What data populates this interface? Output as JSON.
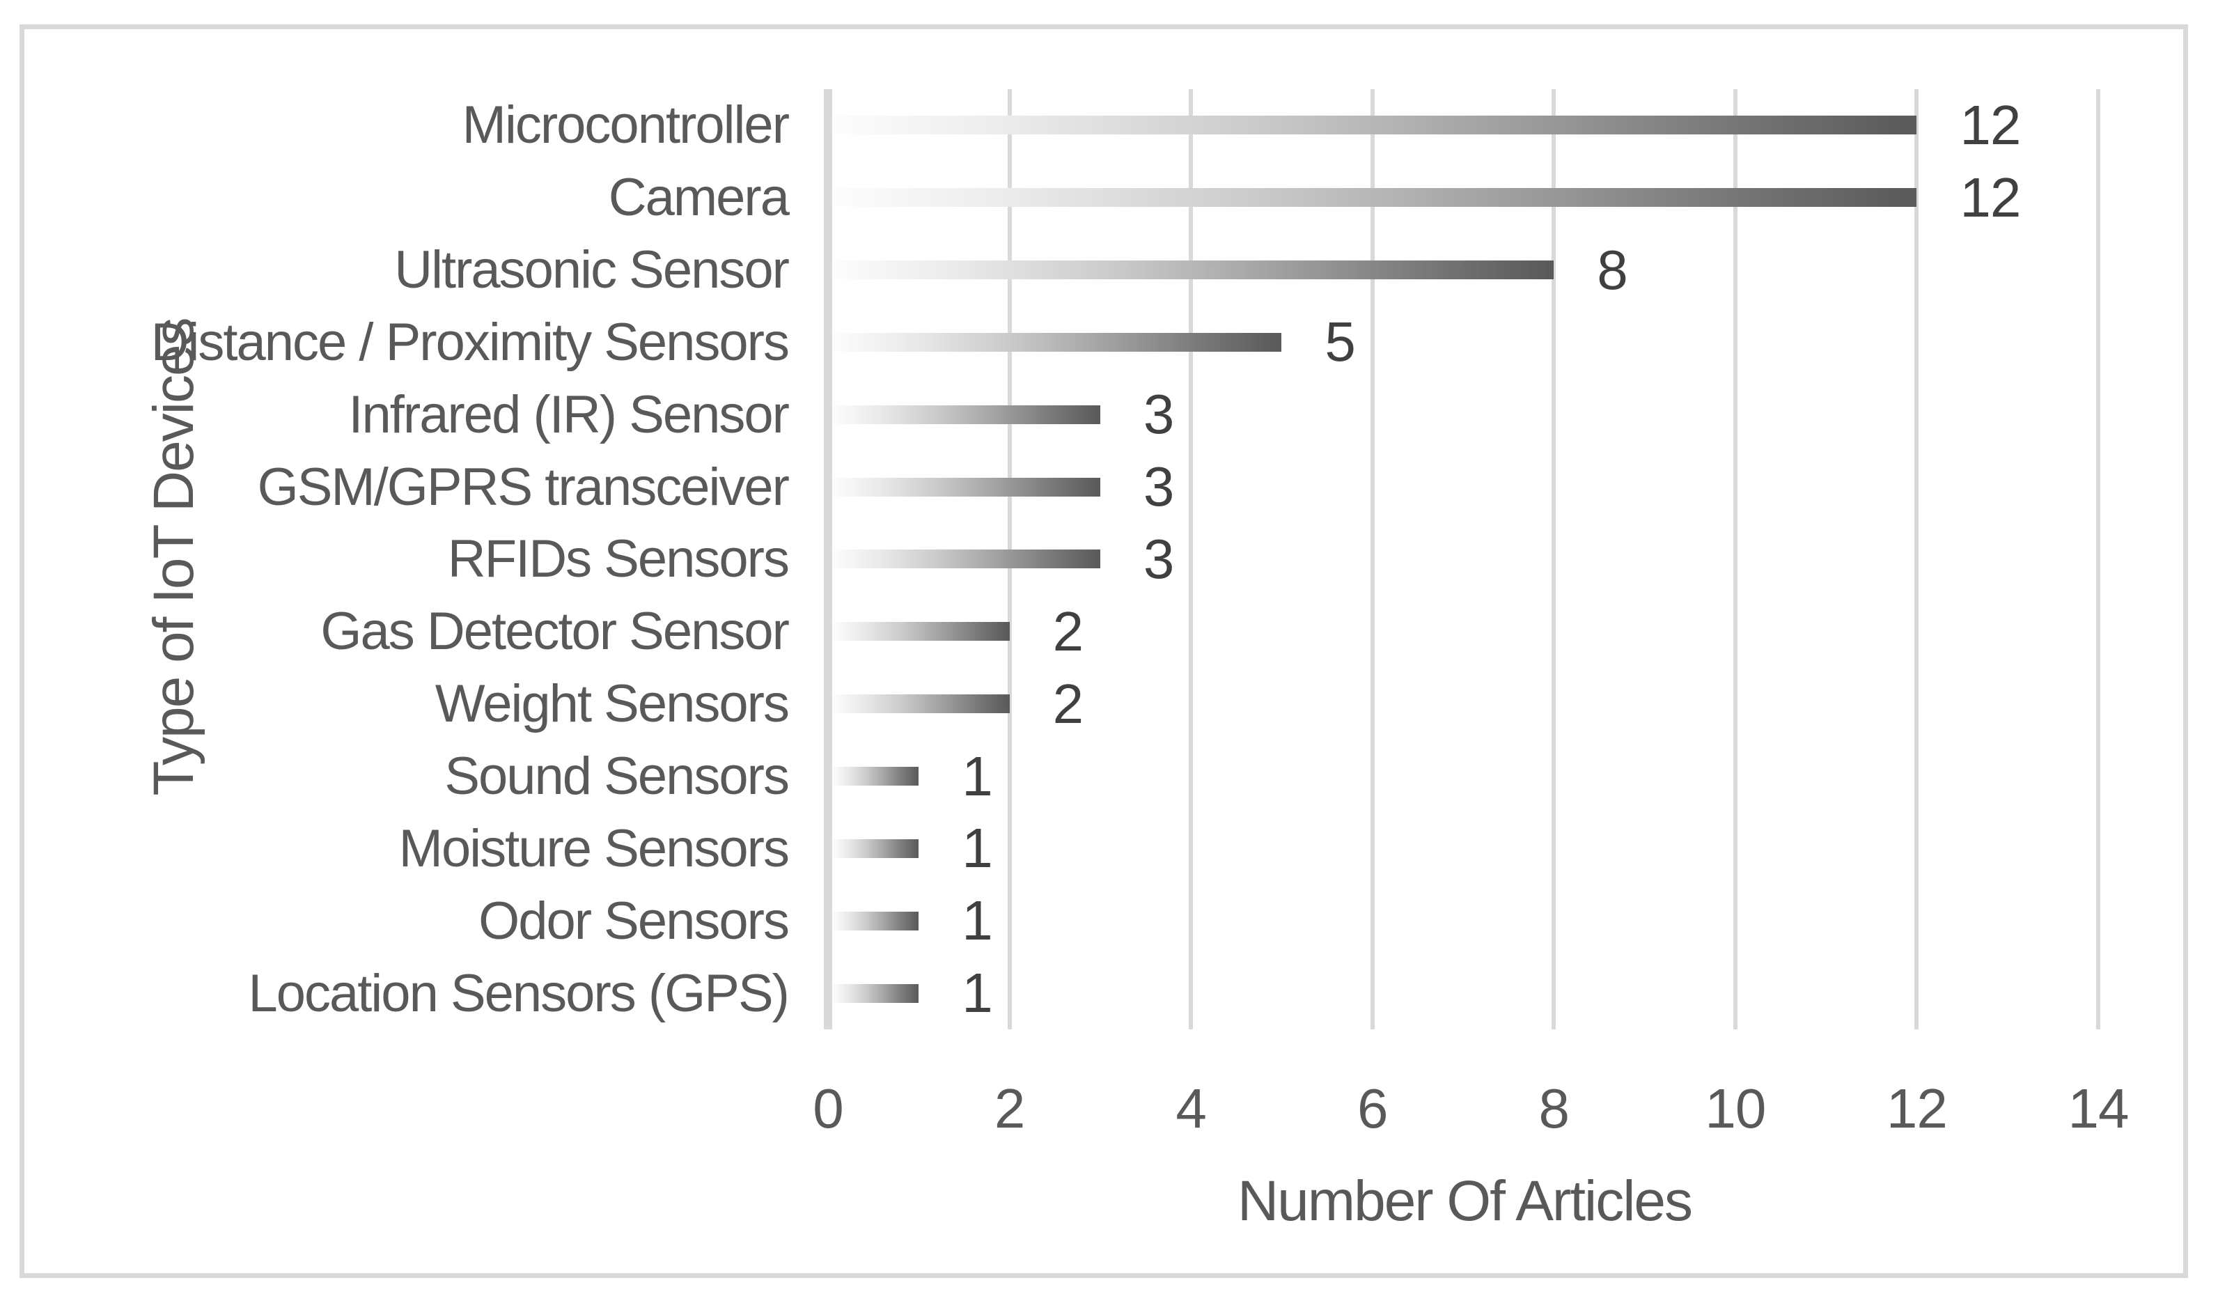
{
  "chart_data": {
    "type": "bar",
    "orientation": "horizontal",
    "categories": [
      "Microcontroller",
      "Camera",
      "Ultrasonic Sensor",
      "Distance / Proximity Sensors",
      "Infrared (IR) Sensor",
      "GSM/GPRS transceiver",
      "RFIDs Sensors",
      "Gas Detector Sensor",
      "Weight Sensors",
      "Sound Sensors",
      "Moisture Sensors",
      "Odor Sensors",
      "Location Sensors (GPS)"
    ],
    "values": [
      12,
      12,
      8,
      5,
      3,
      3,
      3,
      2,
      2,
      1,
      1,
      1,
      1
    ],
    "data_labels": [
      "12",
      "12",
      "8",
      "5",
      "3",
      "3",
      "3",
      "2",
      "2",
      "1",
      "1",
      "1",
      "1"
    ],
    "xlabel": "Number Of Articles",
    "ylabel": "Type of IoT Devices",
    "xlim": [
      0,
      14
    ],
    "xticks": [
      "0",
      "2",
      "4",
      "6",
      "8",
      "10",
      "12",
      "14"
    ],
    "grid": "vertical-gridlines-every-2",
    "legend": "none",
    "colors": {
      "bar_gradient_start": "#fdfdfd",
      "bar_gradient_end": "#595959",
      "gridline": "#d9d9d9",
      "axis_line": "#d9d9d9",
      "figure_border": "#d9d9d9",
      "axis_text": "#595959",
      "data_label_text": "#404040",
      "background": "#ffffff"
    }
  }
}
